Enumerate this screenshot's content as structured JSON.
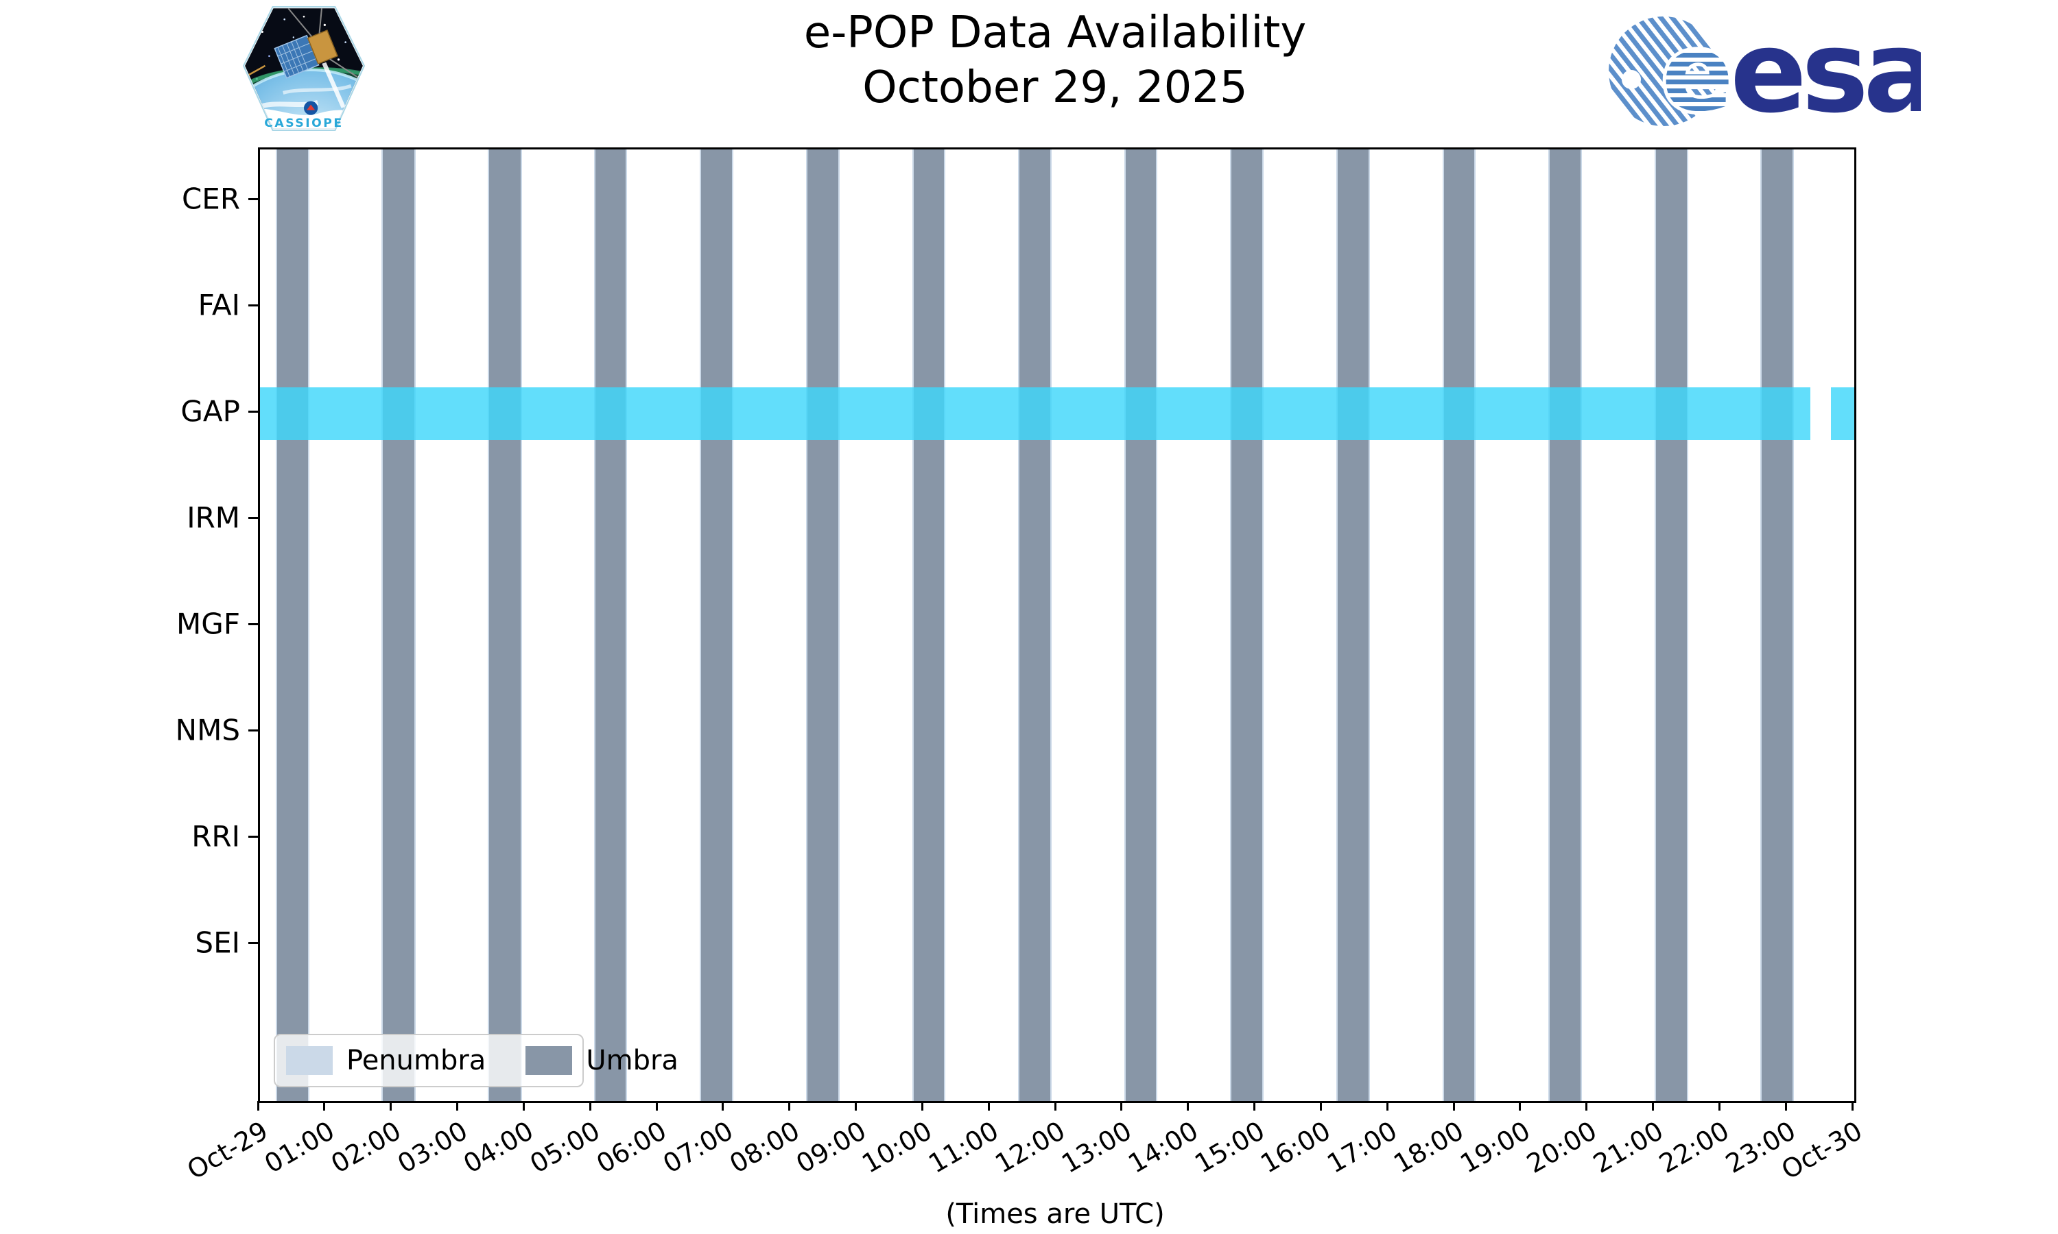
{
  "title": {
    "line1": "e-POP Data Availability",
    "line2": "October 29, 2025"
  },
  "branding": {
    "cassiope_label": "CASSIOPE",
    "esa_wordmark": "esa"
  },
  "legend": {
    "items": [
      {
        "label": "Penumbra",
        "color": "#CBD9E8"
      },
      {
        "label": "Umbra",
        "color": "#8896A7"
      }
    ]
  },
  "x_axis_caption": "(Times are UTC)",
  "chart_data": {
    "type": "timeline",
    "title": "e-POP Data Availability",
    "subtitle": "October 29, 2025",
    "instruments": [
      "CER",
      "FAI",
      "GAP",
      "IRM",
      "MGF",
      "NMS",
      "RRI",
      "SEI"
    ],
    "x_range_hours": [
      0,
      24
    ],
    "x_tick_labels": [
      "Oct-29",
      "01:00",
      "02:00",
      "03:00",
      "04:00",
      "05:00",
      "06:00",
      "07:00",
      "08:00",
      "09:00",
      "10:00",
      "11:00",
      "12:00",
      "13:00",
      "14:00",
      "15:00",
      "16:00",
      "17:00",
      "18:00",
      "19:00",
      "20:00",
      "21:00",
      "22:00",
      "23:00",
      "Oct-30"
    ],
    "x_caption": "(Times are UTC)",
    "umbra_intervals_hours": [
      [
        0.24,
        0.74
      ],
      [
        1.83,
        2.34
      ],
      [
        3.43,
        3.94
      ],
      [
        5.03,
        5.53
      ],
      [
        6.62,
        7.13
      ],
      [
        8.22,
        8.73
      ],
      [
        9.82,
        10.32
      ],
      [
        11.41,
        11.92
      ],
      [
        13.01,
        13.51
      ],
      [
        14.6,
        15.11
      ],
      [
        16.2,
        16.71
      ],
      [
        17.8,
        18.3
      ],
      [
        19.39,
        19.9
      ],
      [
        20.99,
        21.5
      ],
      [
        22.59,
        23.09
      ]
    ],
    "availability": [
      {
        "instrument": "GAP",
        "intervals_hours": [
          [
            0.0,
            23.34
          ],
          [
            23.65,
            24.0
          ]
        ]
      }
    ],
    "colors": {
      "umbra": "#8896A7",
      "penumbra": "#CBD9E8",
      "gap_data": "rgba(64,215,250,0.82)"
    },
    "legend_entries": [
      "Penumbra",
      "Umbra"
    ],
    "grid": false,
    "legend_position": "lower-left"
  }
}
